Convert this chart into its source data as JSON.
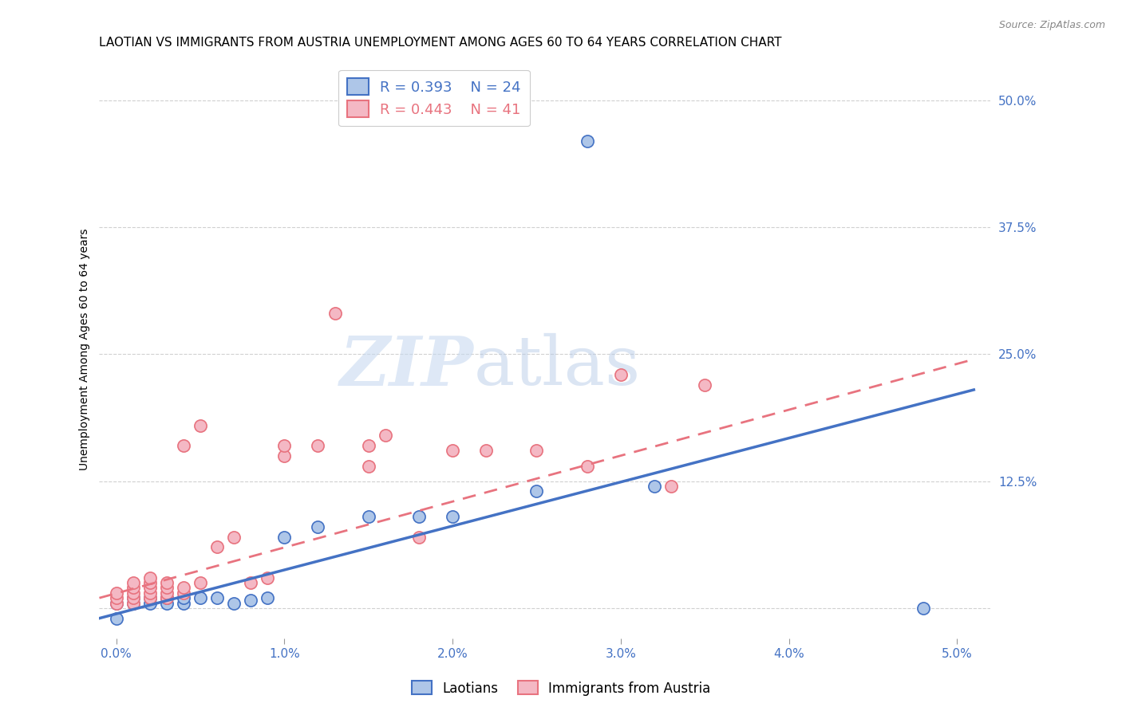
{
  "title": "LAOTIAN VS IMMIGRANTS FROM AUSTRIA UNEMPLOYMENT AMONG AGES 60 TO 64 YEARS CORRELATION CHART",
  "source": "Source: ZipAtlas.com",
  "xlabel": "",
  "ylabel": "Unemployment Among Ages 60 to 64 years",
  "xlim": [
    -0.001,
    0.052
  ],
  "ylim": [
    -0.03,
    0.54
  ],
  "xticks": [
    0.0,
    0.01,
    0.02,
    0.03,
    0.04,
    0.05
  ],
  "yticks": [
    0.0,
    0.125,
    0.25,
    0.375,
    0.5
  ],
  "ytick_labels": [
    "",
    "12.5%",
    "25.0%",
    "37.5%",
    "50.0%"
  ],
  "xtick_labels": [
    "0.0%",
    "1.0%",
    "2.0%",
    "3.0%",
    "4.0%",
    "5.0%"
  ],
  "laotian_color": "#aec6e8",
  "austria_color": "#f4b8c4",
  "trendline_laotian_color": "#4472c4",
  "trendline_austria_color": "#e8737f",
  "legend_R_laotian": "R = 0.393",
  "legend_N_laotian": "N = 24",
  "legend_R_austria": "R = 0.443",
  "legend_N_austria": "N = 41",
  "label_laotian": "Laotians",
  "label_austria": "Immigrants from Austria",
  "watermark_zip": "ZIP",
  "watermark_atlas": "atlas",
  "laotian_x": [
    0.0,
    0.0,
    0.001,
    0.001,
    0.002,
    0.002,
    0.003,
    0.003,
    0.004,
    0.004,
    0.005,
    0.006,
    0.007,
    0.008,
    0.009,
    0.01,
    0.012,
    0.015,
    0.018,
    0.02,
    0.025,
    0.032,
    0.048,
    0.028
  ],
  "laotian_y": [
    0.005,
    -0.01,
    0.005,
    0.01,
    0.005,
    0.01,
    0.005,
    0.01,
    0.005,
    0.01,
    0.01,
    0.01,
    0.005,
    0.008,
    0.01,
    0.07,
    0.08,
    0.09,
    0.09,
    0.09,
    0.115,
    0.12,
    0.0,
    0.46
  ],
  "austria_x": [
    0.0,
    0.0,
    0.0,
    0.001,
    0.001,
    0.001,
    0.001,
    0.001,
    0.002,
    0.002,
    0.002,
    0.002,
    0.002,
    0.003,
    0.003,
    0.003,
    0.003,
    0.004,
    0.004,
    0.004,
    0.005,
    0.005,
    0.006,
    0.007,
    0.008,
    0.009,
    0.01,
    0.01,
    0.012,
    0.013,
    0.015,
    0.015,
    0.016,
    0.018,
    0.02,
    0.022,
    0.025,
    0.028,
    0.03,
    0.033,
    0.035
  ],
  "austria_y": [
    0.005,
    0.01,
    0.015,
    0.005,
    0.01,
    0.015,
    0.02,
    0.025,
    0.01,
    0.015,
    0.02,
    0.025,
    0.03,
    0.01,
    0.015,
    0.02,
    0.025,
    0.015,
    0.02,
    0.16,
    0.025,
    0.18,
    0.06,
    0.07,
    0.025,
    0.03,
    0.15,
    0.16,
    0.16,
    0.29,
    0.14,
    0.16,
    0.17,
    0.07,
    0.155,
    0.155,
    0.155,
    0.14,
    0.23,
    0.12,
    0.22
  ],
  "background_color": "#ffffff",
  "grid_color": "#d0d0d0",
  "axis_color": "#4472c4",
  "title_fontsize": 11,
  "label_fontsize": 10,
  "tick_fontsize": 11,
  "trendline_lao_x0": -0.001,
  "trendline_lao_y0": -0.01,
  "trendline_lao_x1": 0.051,
  "trendline_lao_y1": 0.215,
  "trendline_aut_x0": -0.001,
  "trendline_aut_y0": 0.01,
  "trendline_aut_x1": 0.051,
  "trendline_aut_y1": 0.245
}
